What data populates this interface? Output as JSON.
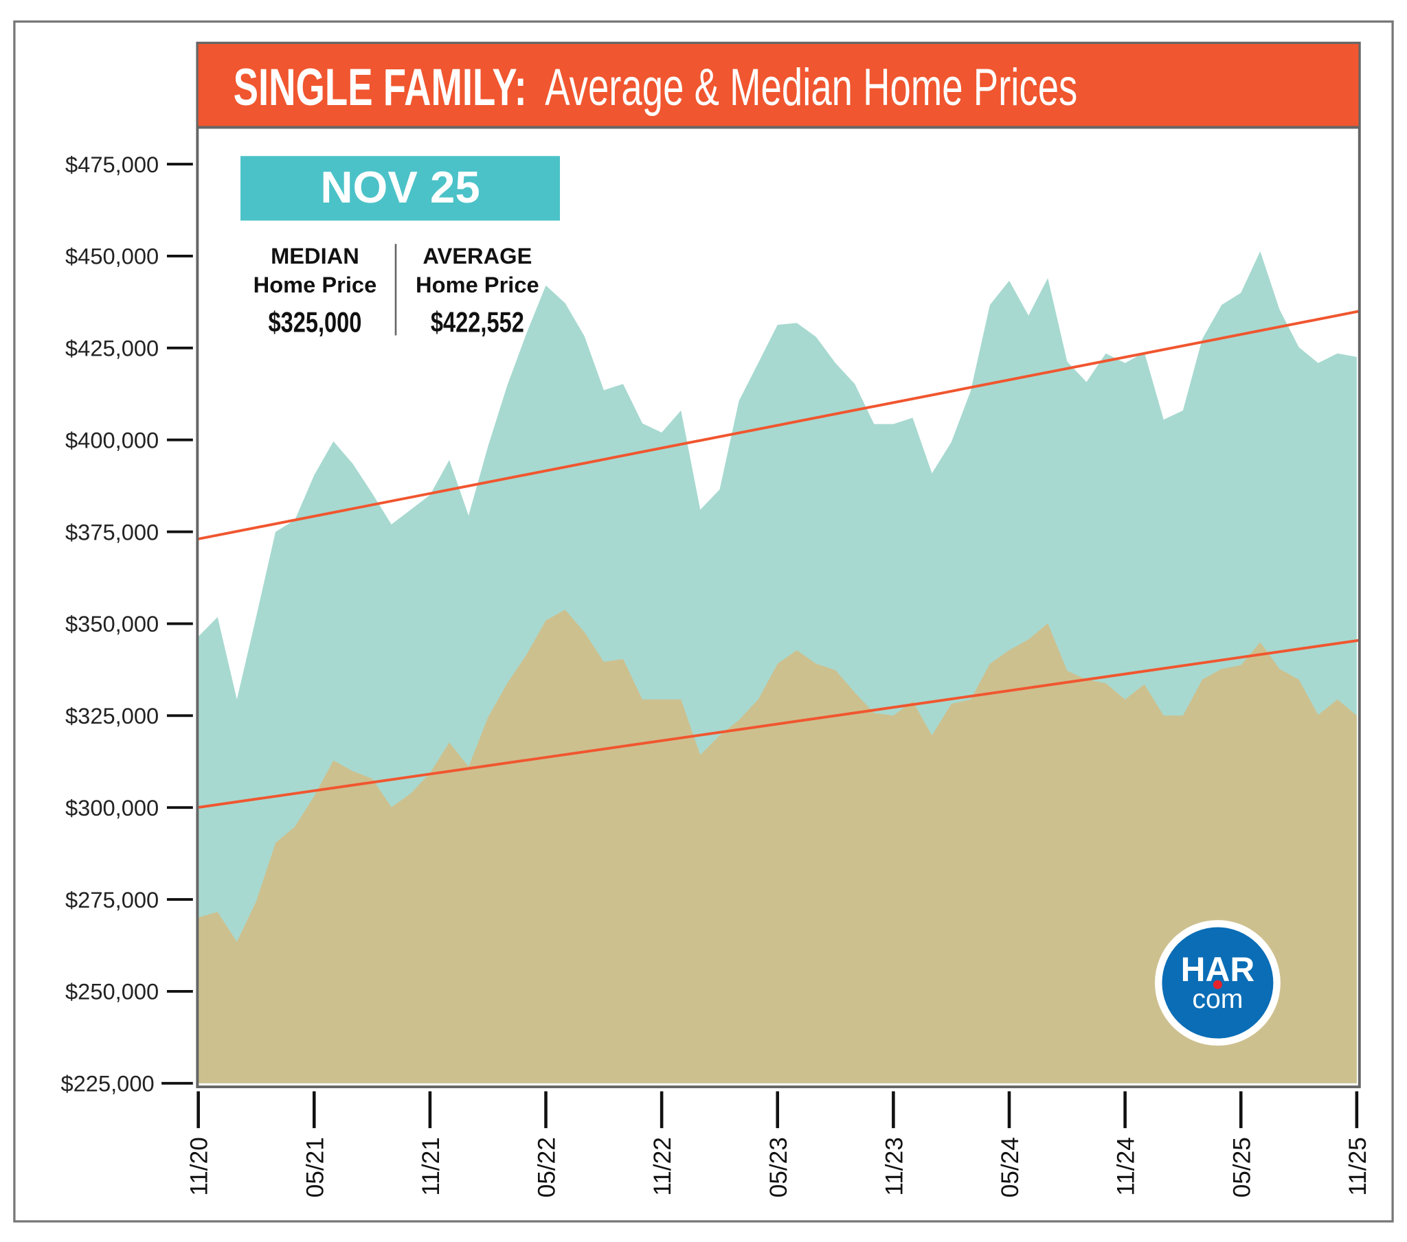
{
  "header": {
    "title_bold": "SINGLE FAMILY:",
    "title_rest": "Average & Median Home Prices",
    "color": "#f0562f"
  },
  "summary": {
    "period": "NOV 25",
    "period_color": "#4bc2c8",
    "median_label": "MEDIAN",
    "median_sub": "Home Price",
    "median_value": "$325,000",
    "average_label": "AVERAGE",
    "average_sub": "Home Price",
    "average_value": "$422,552"
  },
  "logo": {
    "text_top": "HAR",
    "text_bottom": "com",
    "color": "#0a6db6",
    "dot_color": "#e8232a"
  },
  "chart_data": {
    "type": "area",
    "ylim": [
      225000,
      475000
    ],
    "y_ticks": [
      "$475,000",
      "$450,000",
      "$425,000",
      "$400,000",
      "$375,000",
      "$350,000",
      "$325,000",
      "$300,000",
      "$275,000",
      "$250,000",
      "$225,000"
    ],
    "y_tick_values": [
      475000,
      450000,
      425000,
      400000,
      375000,
      350000,
      325000,
      300000,
      275000,
      250000,
      225000
    ],
    "x_ticks": [
      "11/20",
      "05/21",
      "11/21",
      "05/22",
      "11/22",
      "05/23",
      "11/23",
      "05/24",
      "11/24",
      "05/25",
      "11/25"
    ],
    "x_range_months": [
      "11/20",
      "11/25"
    ],
    "grid": false,
    "series": [
      {
        "key": "average",
        "color": "#a7d9d0",
        "values": [
          346500,
          351800,
          329400,
          352000,
          375000,
          378200,
          390400,
          399600,
          393500,
          385500,
          377000,
          381000,
          385000,
          394500,
          379400,
          398200,
          414800,
          429000,
          442000,
          437200,
          428200,
          413500,
          415200,
          404500,
          402000,
          408000,
          381000,
          386500,
          410600,
          420900,
          431300,
          431800,
          428000,
          420900,
          415200,
          404300,
          404300,
          406000,
          390900,
          399400,
          413300,
          436700,
          443300,
          433800,
          444000,
          421300,
          415700,
          423500,
          420900,
          423800,
          405500,
          408000,
          427500,
          436700,
          440000,
          451300,
          435500,
          425200,
          420900,
          423500,
          422552
        ]
      },
      {
        "key": "median",
        "color": "#cdc08f",
        "values": [
          270100,
          271600,
          263500,
          274500,
          290400,
          294800,
          303100,
          312800,
          309900,
          307900,
          300100,
          303800,
          309400,
          317700,
          311100,
          324500,
          333800,
          341600,
          350900,
          353800,
          347700,
          339600,
          340400,
          329400,
          329400,
          329400,
          314300,
          319600,
          323800,
          329400,
          339100,
          342800,
          339100,
          337400,
          331300,
          325700,
          325000,
          328900,
          319600,
          328200,
          329400,
          339100,
          342800,
          345700,
          350100,
          337200,
          334800,
          333800,
          329400,
          333500,
          325000,
          325000,
          334800,
          337700,
          338700,
          345000,
          337700,
          334800,
          325200,
          329400,
          325000
        ]
      }
    ],
    "trendlines": [
      {
        "key": "average-trend",
        "color": "#f0562f",
        "start": 373000,
        "end": 435000
      },
      {
        "key": "median-trend",
        "color": "#f0562f",
        "start": 300000,
        "end": 345500
      }
    ]
  }
}
